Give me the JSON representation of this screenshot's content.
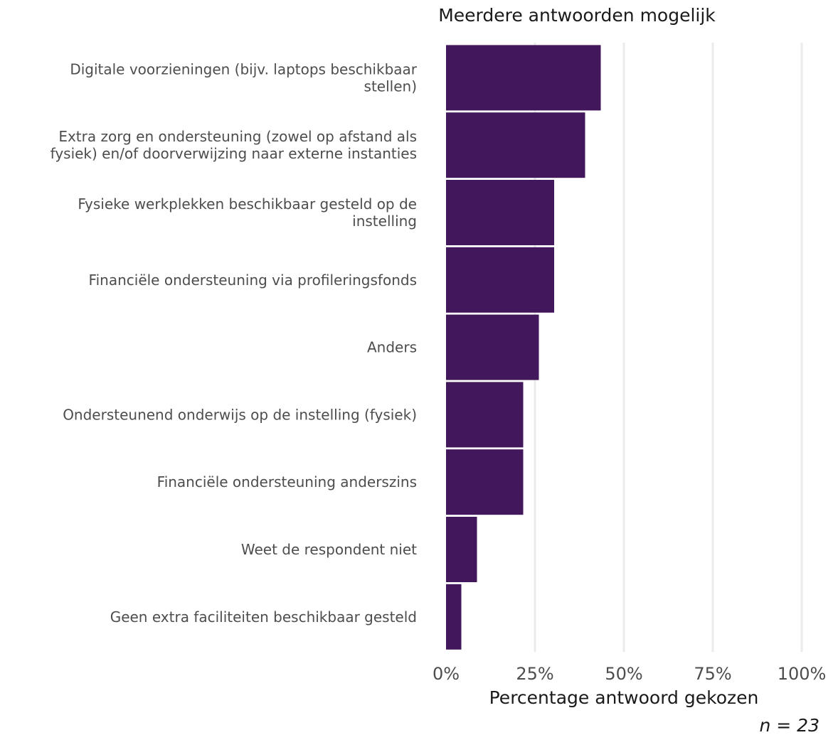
{
  "chart_data": {
    "type": "bar",
    "orientation": "horizontal",
    "title": "Meerdere antwoorden mogelijk",
    "xlabel": "Percentage antwoord gekozen",
    "caption": "n = 23",
    "categories": [
      [
        "Digitale voorzieningen (bijv. laptops beschikbaar",
        "stellen)"
      ],
      [
        "Extra zorg en ondersteuning (zowel op afstand als",
        "fysiek) en/of doorverwijzing naar externe instanties"
      ],
      [
        "Fysieke werkplekken beschikbaar gesteld op de",
        "instelling"
      ],
      [
        "Financiële ondersteuning via profileringsfonds"
      ],
      [
        "Anders"
      ],
      [
        "Ondersteunend onderwijs op de instelling (fysiek)"
      ],
      [
        "Financiële ondersteuning anderszins"
      ],
      [
        "Weet de respondent niet"
      ],
      [
        "Geen extra faciliteiten beschikbaar gesteld"
      ]
    ],
    "values": [
      43.5,
      39.1,
      30.4,
      30.4,
      26.1,
      21.7,
      21.7,
      8.7,
      4.3
    ],
    "xlim": [
      0,
      100
    ],
    "x_ticks": [
      0,
      25,
      50,
      75,
      100
    ],
    "x_tick_labels": [
      "0%",
      "25%",
      "50%",
      "75%",
      "100%"
    ],
    "grid": "vertical",
    "colors": {
      "bar": "#42175c",
      "grid": "#ebebeb"
    }
  }
}
